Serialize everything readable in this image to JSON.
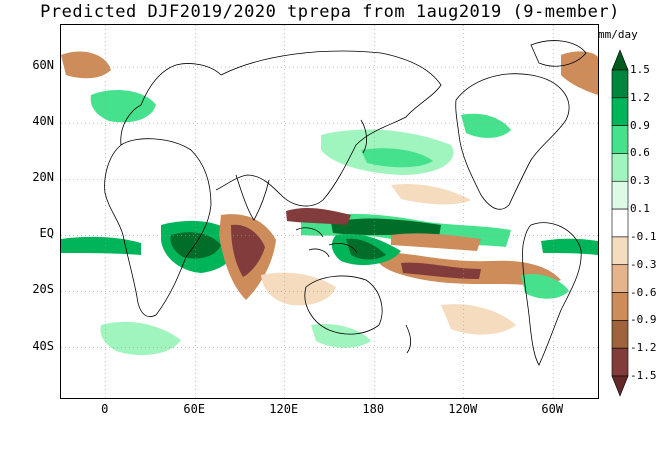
{
  "title": "Predicted DJF2019/2020 tprepa from 1aug2019 (9-member)",
  "units": "mm/day",
  "y_axis": {
    "labels": [
      "60N",
      "40N",
      "20N",
      "EQ",
      "20S",
      "40S"
    ],
    "values": [
      60,
      40,
      20,
      0,
      -20,
      -40
    ],
    "range": [
      -58,
      75
    ]
  },
  "x_axis": {
    "labels": [
      "0",
      "60E",
      "120E",
      "180",
      "120W",
      "60W"
    ],
    "values": [
      0,
      60,
      120,
      180,
      240,
      300
    ],
    "range": [
      -30,
      330
    ]
  },
  "colorbar": {
    "labels": [
      "1.5",
      "1.2",
      "0.9",
      "0.6",
      "0.3",
      "0.1",
      "-0.1",
      "-0.3",
      "-0.6",
      "-0.9",
      "-1.2",
      "-1.5"
    ],
    "colors": [
      "#005a1e",
      "#00853c",
      "#00b45a",
      "#46e18c",
      "#a0f5be",
      "#dcfae6",
      "#ffffff",
      "#f5dcbe",
      "#e6b48c",
      "#cd8c5a",
      "#a0643c",
      "#823c3c",
      "#642828"
    ]
  },
  "colors": {
    "dark_green": "#006e28",
    "green": "#1ec864",
    "light_green": "#a0f5be",
    "light_brown": "#f5dcbe",
    "brown": "#cd8c5a",
    "dark_brown": "#823c3c",
    "land_line": "#000000"
  }
}
